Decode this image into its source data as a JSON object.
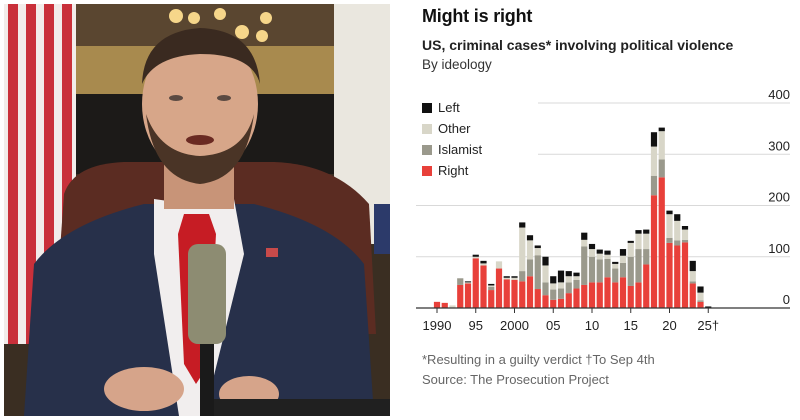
{
  "photo": {
    "description": "Man in navy suit, white shirt and red tie, seated behind a microphone in a formal office with American flag and chandelier"
  },
  "colors": {
    "left": "#111111",
    "other": "#d8d6c8",
    "islamist": "#9a998c",
    "right": "#e8403a",
    "grid": "#d9d9d9",
    "axis": "#333333"
  },
  "chart_data": {
    "type": "bar",
    "stacked": true,
    "title": "Might is right",
    "subtitle": "US, criminal cases* involving political violence",
    "subtitle2": "By ideology",
    "xlabel": "",
    "ylabel": "",
    "ylim": [
      0,
      400
    ],
    "yticks": [
      "400",
      "300",
      "200",
      "100",
      "0"
    ],
    "ytick_values": [
      400,
      300,
      200,
      100,
      0
    ],
    "xtick_labels": [
      "1990",
      "95",
      "2000",
      "05",
      "10",
      "15",
      "20",
      "25†"
    ],
    "xtick_years": [
      1990,
      1995,
      2000,
      2005,
      2010,
      2015,
      2020,
      2025
    ],
    "grid": true,
    "legend_position": "top-left",
    "legend": [
      "Left",
      "Other",
      "Islamist",
      "Right"
    ],
    "categories": [
      1990,
      1991,
      1992,
      1993,
      1994,
      1995,
      1996,
      1997,
      1998,
      1999,
      2000,
      2001,
      2002,
      2003,
      2004,
      2005,
      2006,
      2007,
      2008,
      2009,
      2010,
      2011,
      2012,
      2013,
      2014,
      2015,
      2016,
      2017,
      2018,
      2019,
      2020,
      2021,
      2022,
      2023,
      2024,
      2025
    ],
    "series": [
      {
        "name": "Right",
        "key": "right",
        "values": [
          12,
          10,
          0,
          45,
          48,
          97,
          83,
          35,
          77,
          56,
          55,
          52,
          62,
          37,
          25,
          16,
          18,
          29,
          38,
          45,
          50,
          50,
          60,
          50,
          60,
          43,
          50,
          85,
          220,
          255,
          127,
          122,
          128,
          48,
          12,
          0
        ]
      },
      {
        "name": "Islamist",
        "key": "islamist",
        "values": [
          0,
          0,
          0,
          13,
          0,
          0,
          0,
          6,
          0,
          0,
          0,
          20,
          33,
          66,
          25,
          20,
          20,
          21,
          17,
          75,
          50,
          45,
          36,
          27,
          28,
          57,
          65,
          30,
          38,
          35,
          10,
          10,
          5,
          4,
          3,
          0
        ]
      },
      {
        "name": "Other",
        "key": "other",
        "values": [
          0,
          0,
          5,
          0,
          2,
          3,
          4,
          3,
          14,
          3,
          4,
          85,
          37,
          14,
          33,
          12,
          12,
          12,
          7,
          13,
          15,
          11,
          8,
          9,
          14,
          27,
          30,
          30,
          57,
          55,
          46,
          38,
          20,
          20,
          15,
          0
        ]
      },
      {
        "name": "Left",
        "key": "left",
        "values": [
          0,
          0,
          0,
          0,
          2,
          4,
          5,
          3,
          0,
          3,
          3,
          10,
          10,
          5,
          17,
          14,
          23,
          10,
          7,
          14,
          10,
          8,
          8,
          4,
          13,
          4,
          7,
          8,
          28,
          7,
          7,
          13,
          7,
          20,
          12,
          3
        ]
      }
    ],
    "footnote": "*Resulting in a guilty verdict †To Sep 4th",
    "source": "Source: The Prosecution Project"
  }
}
